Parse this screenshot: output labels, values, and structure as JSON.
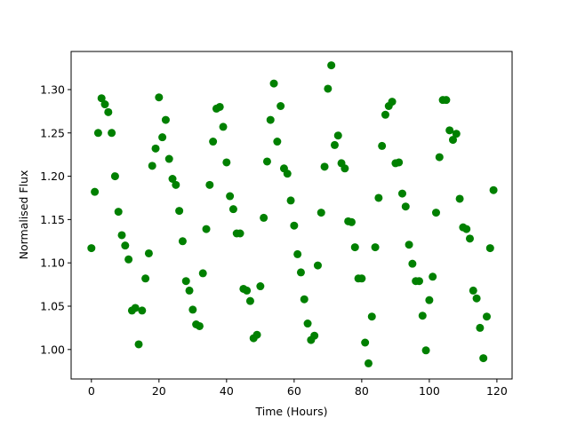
{
  "chart_data": {
    "type": "scatter",
    "xlabel": "Time (Hours)",
    "ylabel": "Normalised Flux",
    "color": "#008000",
    "x": [
      0,
      1,
      2,
      3,
      4,
      5,
      6,
      7,
      8,
      9,
      10,
      11,
      12,
      13,
      14,
      15,
      16,
      17,
      18,
      19,
      20,
      21,
      22,
      23,
      24,
      25,
      26,
      27,
      28,
      29,
      30,
      31,
      32,
      33,
      34,
      35,
      36,
      37,
      38,
      39,
      40,
      41,
      42,
      43,
      44,
      45,
      46,
      47,
      48,
      49,
      50,
      51,
      52,
      53,
      54,
      55,
      56,
      57,
      58,
      59,
      60,
      61,
      62,
      63,
      64,
      65,
      66,
      67,
      68,
      69,
      70,
      71,
      72,
      73,
      74,
      75,
      76,
      77,
      78,
      79,
      80,
      81,
      82,
      83,
      84,
      85,
      86,
      87,
      88,
      89,
      90,
      91,
      92,
      93,
      94,
      95,
      96,
      97,
      98,
      99,
      100,
      101,
      102,
      103,
      104,
      105,
      106,
      107,
      108,
      109,
      110,
      111,
      112,
      113,
      114,
      115,
      116,
      117,
      118,
      119
    ],
    "values": [
      1.117,
      1.182,
      1.25,
      1.29,
      1.283,
      1.274,
      1.25,
      1.2,
      1.159,
      1.132,
      1.12,
      1.104,
      1.045,
      1.048,
      1.006,
      1.045,
      1.082,
      1.111,
      1.212,
      1.232,
      1.291,
      1.245,
      1.265,
      1.22,
      1.197,
      1.19,
      1.16,
      1.125,
      1.079,
      1.068,
      1.046,
      1.029,
      1.027,
      1.088,
      1.139,
      1.19,
      1.24,
      1.278,
      1.28,
      1.257,
      1.216,
      1.177,
      1.162,
      1.134,
      1.134,
      1.07,
      1.068,
      1.056,
      1.013,
      1.017,
      1.073,
      1.152,
      1.217,
      1.265,
      1.307,
      1.24,
      1.281,
      1.209,
      1.203,
      1.172,
      1.143,
      1.11,
      1.089,
      1.058,
      1.03,
      1.011,
      1.016,
      1.097,
      1.158,
      1.211,
      1.301,
      1.328,
      1.236,
      1.247,
      1.215,
      1.209,
      1.148,
      1.147,
      1.118,
      1.082,
      1.082,
      1.008,
      0.984,
      1.038,
      1.118,
      1.175,
      1.235,
      1.271,
      1.281,
      1.286,
      1.215,
      1.216,
      1.18,
      1.165,
      1.121,
      1.099,
      1.079,
      1.079,
      1.039,
      0.999,
      1.057,
      1.084,
      1.158,
      1.222,
      1.288,
      1.288,
      1.253,
      1.242,
      1.249,
      1.174,
      1.141,
      1.139,
      1.128,
      1.068,
      1.059,
      1.025,
      0.99,
      1.038,
      1.117,
      1.184
    ],
    "xlim": [
      -6,
      124.5
    ],
    "ylim": [
      0.966,
      1.344
    ],
    "xticks": [
      0,
      20,
      40,
      60,
      80,
      100,
      120
    ],
    "yticks": [
      {
        "value": 1.0,
        "label": "1.00"
      },
      1.05,
      {
        "value": 1.1,
        "label": "1.10"
      },
      1.15,
      {
        "value": 1.2,
        "label": "1.20"
      },
      1.25,
      {
        "value": 1.3,
        "label": "1.30"
      }
    ]
  }
}
